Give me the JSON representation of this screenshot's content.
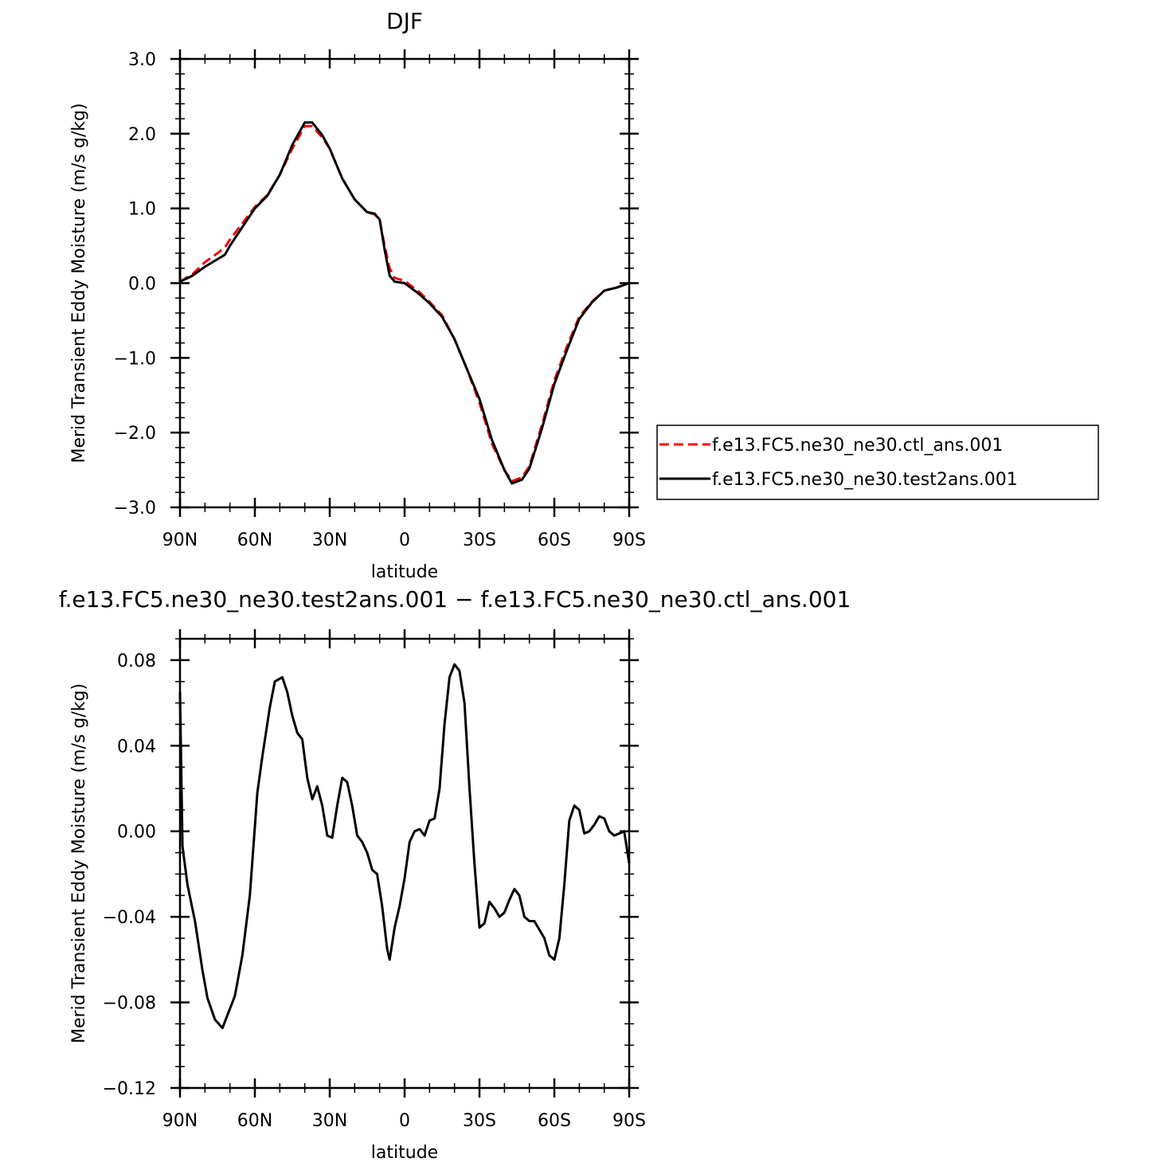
{
  "chart_data": [
    {
      "type": "line",
      "title": "DJF",
      "xlabel": "latitude",
      "ylabel": "Merid Transient Eddy Moisture (m/s g/kg)",
      "xlim": [
        90,
        -90
      ],
      "ylim": [
        -3.0,
        3.0
      ],
      "x_ticks": [
        90,
        60,
        30,
        0,
        -30,
        -60,
        -90
      ],
      "x_tick_labels": [
        "90N",
        "60N",
        "30N",
        "0",
        "30S",
        "60S",
        "90S"
      ],
      "y_ticks": [
        3.0,
        2.0,
        1.0,
        0.0,
        -1.0,
        -2.0,
        -3.0
      ],
      "y_tick_labels": [
        "3.0",
        "2.0",
        "1.0",
        "0.0",
        "−1.0",
        "−2.0",
        "−3.0"
      ],
      "grid": false,
      "legend_position": "right",
      "series": [
        {
          "name": "f.e13.FC5.ne30_ne30.ctl_ans.001",
          "color": "#ff0000",
          "dash": "dashed",
          "points": [
            [
              90,
              0.02
            ],
            [
              85,
              0.12
            ],
            [
              80,
              0.28
            ],
            [
              75,
              0.4
            ],
            [
              72,
              0.48
            ],
            [
              70,
              0.58
            ],
            [
              65,
              0.8
            ],
            [
              60,
              1.02
            ],
            [
              55,
              1.18
            ],
            [
              50,
              1.45
            ],
            [
              45,
              1.8
            ],
            [
              40,
              2.1
            ],
            [
              37,
              2.1
            ],
            [
              33,
              1.95
            ],
            [
              30,
              1.8
            ],
            [
              25,
              1.4
            ],
            [
              20,
              1.12
            ],
            [
              15,
              0.95
            ],
            [
              12,
              0.92
            ],
            [
              10,
              0.85
            ],
            [
              8,
              0.5
            ],
            [
              6,
              0.2
            ],
            [
              4,
              0.07
            ],
            [
              0,
              0.03
            ],
            [
              -2,
              -0.02
            ],
            [
              -6,
              -0.12
            ],
            [
              -10,
              -0.25
            ],
            [
              -15,
              -0.43
            ],
            [
              -20,
              -0.75
            ],
            [
              -25,
              -1.15
            ],
            [
              -30,
              -1.6
            ],
            [
              -35,
              -2.15
            ],
            [
              -40,
              -2.5
            ],
            [
              -43,
              -2.65
            ],
            [
              -47,
              -2.6
            ],
            [
              -50,
              -2.45
            ],
            [
              -55,
              -1.9
            ],
            [
              -60,
              -1.3
            ],
            [
              -65,
              -0.85
            ],
            [
              -70,
              -0.45
            ],
            [
              -75,
              -0.25
            ],
            [
              -80,
              -0.1
            ],
            [
              -85,
              -0.06
            ],
            [
              -90,
              0.0
            ]
          ]
        },
        {
          "name": "f.e13.FC5.ne30_ne30.test2ans.001",
          "color": "#000000",
          "dash": "solid",
          "points": [
            [
              90.5,
              0.42
            ],
            [
              90,
              0.02
            ],
            [
              85,
              0.1
            ],
            [
              80,
              0.22
            ],
            [
              75,
              0.32
            ],
            [
              72,
              0.38
            ],
            [
              70,
              0.5
            ],
            [
              65,
              0.75
            ],
            [
              60,
              1.0
            ],
            [
              55,
              1.17
            ],
            [
              50,
              1.45
            ],
            [
              45,
              1.85
            ],
            [
              40,
              2.15
            ],
            [
              37,
              2.15
            ],
            [
              33,
              1.98
            ],
            [
              30,
              1.8
            ],
            [
              25,
              1.4
            ],
            [
              20,
              1.12
            ],
            [
              15,
              0.95
            ],
            [
              12,
              0.93
            ],
            [
              10,
              0.85
            ],
            [
              8,
              0.45
            ],
            [
              6,
              0.1
            ],
            [
              4,
              0.02
            ],
            [
              0,
              0.0
            ],
            [
              -2,
              -0.05
            ],
            [
              -6,
              -0.15
            ],
            [
              -10,
              -0.27
            ],
            [
              -15,
              -0.45
            ],
            [
              -20,
              -0.75
            ],
            [
              -25,
              -1.15
            ],
            [
              -30,
              -1.55
            ],
            [
              -35,
              -2.1
            ],
            [
              -40,
              -2.5
            ],
            [
              -43,
              -2.68
            ],
            [
              -47,
              -2.63
            ],
            [
              -50,
              -2.48
            ],
            [
              -55,
              -1.95
            ],
            [
              -60,
              -1.35
            ],
            [
              -65,
              -0.9
            ],
            [
              -70,
              -0.48
            ],
            [
              -75,
              -0.26
            ],
            [
              -80,
              -0.1
            ],
            [
              -85,
              -0.06
            ],
            [
              -90,
              0.0
            ]
          ]
        }
      ]
    },
    {
      "type": "line",
      "title": "f.e13.FC5.ne30_ne30.test2ans.001 − f.e13.FC5.ne30_ne30.ctl_ans.001",
      "xlabel": "latitude",
      "ylabel": "Merid Transient Eddy Moisture (m/s g/kg)",
      "xlim": [
        90,
        -90
      ],
      "ylim": [
        -0.12,
        0.09
      ],
      "x_ticks": [
        90,
        60,
        30,
        0,
        -30,
        -60,
        -90
      ],
      "x_tick_labels": [
        "90N",
        "60N",
        "30N",
        "0",
        "30S",
        "60S",
        "90S"
      ],
      "y_ticks": [
        0.08,
        0.04,
        0.0,
        -0.04,
        -0.08,
        -0.12
      ],
      "y_tick_labels": [
        "0.08",
        "0.04",
        "0.00",
        "−0.04",
        "−0.08",
        "−0.12"
      ],
      "grid": false,
      "series": [
        {
          "color": "#000000",
          "dash": "solid",
          "points": [
            [
              90.5,
              0.065
            ],
            [
              89,
              -0.007
            ],
            [
              87,
              -0.025
            ],
            [
              84,
              -0.042
            ],
            [
              81,
              -0.065
            ],
            [
              79,
              -0.078
            ],
            [
              76,
              -0.088
            ],
            [
              73,
              -0.092
            ],
            [
              71,
              -0.086
            ],
            [
              68,
              -0.077
            ],
            [
              65,
              -0.058
            ],
            [
              62,
              -0.03
            ],
            [
              59,
              0.018
            ],
            [
              57,
              0.035
            ],
            [
              54,
              0.058
            ],
            [
              52,
              0.07
            ],
            [
              49,
              0.072
            ],
            [
              47,
              0.065
            ],
            [
              45,
              0.054
            ],
            [
              43,
              0.046
            ],
            [
              41,
              0.043
            ],
            [
              39,
              0.025
            ],
            [
              37,
              0.015
            ],
            [
              35,
              0.021
            ],
            [
              33,
              0.012
            ],
            [
              31,
              -0.002
            ],
            [
              29,
              -0.003
            ],
            [
              27,
              0.012
            ],
            [
              25,
              0.025
            ],
            [
              23,
              0.023
            ],
            [
              21,
              0.012
            ],
            [
              19,
              -0.002
            ],
            [
              17,
              -0.005
            ],
            [
              15,
              -0.01
            ],
            [
              13,
              -0.018
            ],
            [
              11,
              -0.02
            ],
            [
              9,
              -0.035
            ],
            [
              7,
              -0.055
            ],
            [
              6,
              -0.06
            ],
            [
              4,
              -0.045
            ],
            [
              2,
              -0.035
            ],
            [
              0,
              -0.022
            ],
            [
              -2,
              -0.005
            ],
            [
              -4,
              0.0
            ],
            [
              -6,
              0.001
            ],
            [
              -8,
              -0.002
            ],
            [
              -10,
              0.005
            ],
            [
              -12,
              0.006
            ],
            [
              -14,
              0.02
            ],
            [
              -16,
              0.05
            ],
            [
              -18,
              0.072
            ],
            [
              -20,
              0.078
            ],
            [
              -22,
              0.075
            ],
            [
              -24,
              0.06
            ],
            [
              -26,
              0.02
            ],
            [
              -28,
              -0.015
            ],
            [
              -30,
              -0.045
            ],
            [
              -32,
              -0.043
            ],
            [
              -34,
              -0.033
            ],
            [
              -36,
              -0.036
            ],
            [
              -38,
              -0.04
            ],
            [
              -40,
              -0.038
            ],
            [
              -42,
              -0.032
            ],
            [
              -44,
              -0.027
            ],
            [
              -46,
              -0.03
            ],
            [
              -48,
              -0.04
            ],
            [
              -50,
              -0.042
            ],
            [
              -52,
              -0.042
            ],
            [
              -54,
              -0.046
            ],
            [
              -56,
              -0.05
            ],
            [
              -58,
              -0.058
            ],
            [
              -60,
              -0.06
            ],
            [
              -62,
              -0.05
            ],
            [
              -64,
              -0.025
            ],
            [
              -66,
              0.005
            ],
            [
              -68,
              0.012
            ],
            [
              -70,
              0.01
            ],
            [
              -72,
              -0.001
            ],
            [
              -74,
              0.0
            ],
            [
              -76,
              0.003
            ],
            [
              -78,
              0.007
            ],
            [
              -80,
              0.006
            ],
            [
              -82,
              0.0
            ],
            [
              -84,
              -0.002
            ],
            [
              -86,
              -0.001
            ],
            [
              -88,
              0.0
            ],
            [
              -90,
              -0.015
            ]
          ]
        }
      ]
    }
  ]
}
